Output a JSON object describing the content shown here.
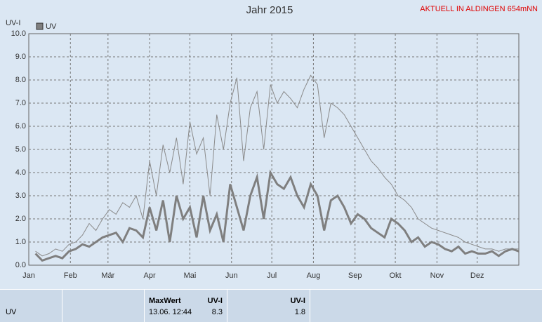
{
  "chart_data": {
    "type": "line",
    "title": "Jahr 2015",
    "subtitle": "AKTUELL IN ALDINGEN 654mNN",
    "y_label": "UV-I",
    "xlim": [
      0,
      365
    ],
    "xticks": [
      {
        "value": 0,
        "label": "Jan"
      },
      {
        "value": 31,
        "label": "Feb"
      },
      {
        "value": 59,
        "label": "Mär"
      },
      {
        "value": 90,
        "label": "Apr"
      },
      {
        "value": 120,
        "label": "Mai"
      },
      {
        "value": 151,
        "label": "Jun"
      },
      {
        "value": 181,
        "label": "Jul"
      },
      {
        "value": 212,
        "label": "Aug"
      },
      {
        "value": 243,
        "label": "Sep"
      },
      {
        "value": 273,
        "label": "Okt"
      },
      {
        "value": 304,
        "label": "Nov"
      },
      {
        "value": 334,
        "label": "Dez"
      }
    ],
    "ylim": [
      0,
      10
    ],
    "yticks": [
      {
        "value": 0,
        "label": "0.0"
      },
      {
        "value": 1,
        "label": "1.0"
      },
      {
        "value": 2,
        "label": "2.0"
      },
      {
        "value": 3,
        "label": "3.0"
      },
      {
        "value": 4,
        "label": "4.0"
      },
      {
        "value": 5,
        "label": "5.0"
      },
      {
        "value": 6,
        "label": "6.0"
      },
      {
        "value": 7,
        "label": "7.0"
      },
      {
        "value": 8,
        "label": "8.0"
      },
      {
        "value": 9,
        "label": "9.0"
      },
      {
        "value": 10,
        "label": "10.0"
      }
    ],
    "grid": true,
    "legend": "top-left",
    "x": [
      5,
      10,
      15,
      20,
      25,
      30,
      35,
      40,
      45,
      50,
      55,
      60,
      65,
      70,
      75,
      80,
      85,
      90,
      95,
      100,
      105,
      110,
      115,
      120,
      125,
      130,
      135,
      140,
      145,
      150,
      155,
      160,
      165,
      170,
      175,
      180,
      185,
      190,
      195,
      200,
      205,
      210,
      215,
      220,
      225,
      230,
      235,
      240,
      245,
      250,
      255,
      260,
      265,
      270,
      275,
      280,
      285,
      290,
      295,
      300,
      305,
      310,
      315,
      320,
      325,
      330,
      335,
      340,
      345,
      350,
      355,
      360,
      365
    ],
    "series": [
      {
        "name": "UV",
        "color": "#7f7f7f",
        "values": [
          0.5,
          0.2,
          0.3,
          0.4,
          0.3,
          0.6,
          0.7,
          0.9,
          0.8,
          1.0,
          1.2,
          1.3,
          1.4,
          1.0,
          1.6,
          1.5,
          1.2,
          2.5,
          1.5,
          2.8,
          1.0,
          3.0,
          2.0,
          2.5,
          1.2,
          3.0,
          1.5,
          2.2,
          1.0,
          3.5,
          2.5,
          1.5,
          3.0,
          3.8,
          2.0,
          4.0,
          3.5,
          3.3,
          3.8,
          3.0,
          2.5,
          3.5,
          3.0,
          1.5,
          2.8,
          3.0,
          2.5,
          1.8,
          2.2,
          2.0,
          1.6,
          1.4,
          1.2,
          2.0,
          1.8,
          1.5,
          1.0,
          1.2,
          0.8,
          1.0,
          0.9,
          0.7,
          0.6,
          0.8,
          0.5,
          0.6,
          0.5,
          0.5,
          0.6,
          0.4,
          0.6,
          0.7,
          0.6
        ]
      },
      {
        "color": "#8a8a8a",
        "values": [
          0.6,
          0.4,
          0.5,
          0.7,
          0.6,
          0.9,
          1.0,
          1.3,
          1.8,
          1.5,
          2.0,
          2.4,
          2.2,
          2.7,
          2.5,
          3.0,
          2.0,
          4.5,
          3.0,
          5.2,
          4.0,
          5.5,
          3.5,
          6.2,
          4.8,
          5.5,
          3.0,
          6.5,
          5.0,
          7.0,
          8.1,
          4.5,
          6.8,
          7.5,
          5.0,
          7.8,
          7.0,
          7.5,
          7.2,
          6.8,
          7.6,
          8.2,
          7.8,
          5.5,
          7.0,
          6.8,
          6.5,
          6.0,
          5.5,
          5.0,
          4.5,
          4.2,
          3.8,
          3.5,
          3.0,
          2.8,
          2.5,
          2.0,
          1.8,
          1.6,
          1.5,
          1.4,
          1.3,
          1.2,
          1.0,
          0.9,
          0.8,
          0.7,
          0.7,
          0.6,
          0.7,
          0.7,
          0.7
        ]
      }
    ]
  },
  "table": {
    "row_label": "UV",
    "max_header": "MaxWert",
    "max_unit": "UV-I",
    "max_time": "13.06.  12:44",
    "max_value": "8.3",
    "cur_unit": "UV-I",
    "cur_value": "1.8"
  }
}
